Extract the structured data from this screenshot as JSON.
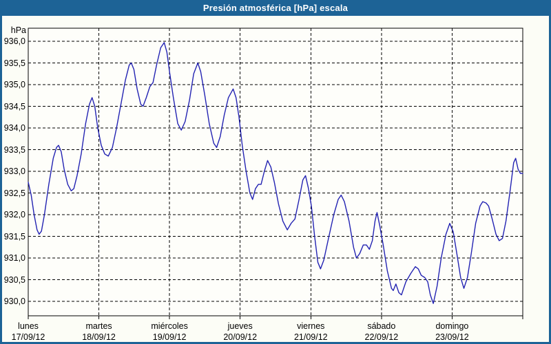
{
  "window": {
    "title": "Presión atmosférica [hPa] escala"
  },
  "colors": {
    "titlebar_bg": "#1d6396",
    "titlebar_text": "#ffffff",
    "frame_border": "#1d6396",
    "canvas_bg": "#fcfdf6",
    "plot_bg": "#fefefa",
    "grid": "#000000",
    "axis": "#000000",
    "line": "#2222b2",
    "label_text": "#000000"
  },
  "chart_data": {
    "type": "line",
    "title": "Presión atmosférica [hPa] escala",
    "xlabel": "",
    "ylabel": "hPa",
    "ylim": [
      930.0,
      936.0
    ],
    "y_tick_step": 0.5,
    "y_tick_labels": [
      "936,0",
      "935,5",
      "935,0",
      "934,5",
      "934,0",
      "933,5",
      "933,0",
      "932,5",
      "932,0",
      "931,5",
      "931,0",
      "930,5",
      "930,0"
    ],
    "y_tick_values": [
      936.0,
      935.5,
      935.0,
      934.5,
      934.0,
      933.5,
      933.0,
      932.5,
      932.0,
      931.5,
      931.0,
      930.5,
      930.0
    ],
    "x_unit": "hours since lunes 17/09/12 00:00",
    "xlim": [
      0,
      168
    ],
    "x_days": [
      {
        "name": "lunes",
        "date": "17/09/12"
      },
      {
        "name": "martes",
        "date": "18/09/12"
      },
      {
        "name": "miércoles",
        "date": "19/09/12"
      },
      {
        "name": "jueves",
        "date": "20/09/12"
      },
      {
        "name": "viernes",
        "date": "21/09/12"
      },
      {
        "name": "sábado",
        "date": "22/09/12"
      },
      {
        "name": "domingo",
        "date": "23/09/12"
      }
    ],
    "grid": true,
    "legend_position": "none",
    "series": [
      {
        "name": "Presión atmosférica",
        "points": [
          [
            0,
            932.75
          ],
          [
            1,
            932.45
          ],
          [
            2,
            932.0
          ],
          [
            3,
            931.65
          ],
          [
            3.7,
            931.55
          ],
          [
            4.5,
            931.62
          ],
          [
            5.5,
            932.0
          ],
          [
            7,
            932.7
          ],
          [
            8.5,
            933.3
          ],
          [
            9.6,
            933.55
          ],
          [
            10.3,
            933.6
          ],
          [
            11.2,
            933.45
          ],
          [
            12.2,
            933.05
          ],
          [
            13.4,
            932.7
          ],
          [
            14.6,
            932.55
          ],
          [
            15.5,
            932.6
          ],
          [
            16.6,
            932.9
          ],
          [
            18,
            933.4
          ],
          [
            19.5,
            934.1
          ],
          [
            20.8,
            934.55
          ],
          [
            21.7,
            934.7
          ],
          [
            22.6,
            934.5
          ],
          [
            23.6,
            934.0
          ],
          [
            24.8,
            933.6
          ],
          [
            26,
            933.4
          ],
          [
            27.2,
            933.35
          ],
          [
            28.6,
            933.55
          ],
          [
            30,
            934.0
          ],
          [
            31.5,
            934.55
          ],
          [
            33,
            935.1
          ],
          [
            34.3,
            935.45
          ],
          [
            35,
            935.5
          ],
          [
            35.9,
            935.35
          ],
          [
            37,
            934.9
          ],
          [
            38.2,
            934.55
          ],
          [
            39,
            934.5
          ],
          [
            40.1,
            934.7
          ],
          [
            41.3,
            934.95
          ],
          [
            42.4,
            935.05
          ],
          [
            43.6,
            935.45
          ],
          [
            45,
            935.85
          ],
          [
            46.2,
            935.97
          ],
          [
            47.1,
            935.75
          ],
          [
            48,
            935.3
          ],
          [
            49.3,
            934.7
          ],
          [
            50.8,
            934.1
          ],
          [
            52,
            933.95
          ],
          [
            53.3,
            934.15
          ],
          [
            54.8,
            934.65
          ],
          [
            56.2,
            935.25
          ],
          [
            57.6,
            935.5
          ],
          [
            58.6,
            935.3
          ],
          [
            60,
            934.75
          ],
          [
            61.5,
            934.1
          ],
          [
            63,
            933.65
          ],
          [
            64,
            933.55
          ],
          [
            65.2,
            933.8
          ],
          [
            66.6,
            934.3
          ],
          [
            68,
            934.7
          ],
          [
            69.6,
            934.9
          ],
          [
            70.6,
            934.7
          ],
          [
            71.6,
            934.25
          ],
          [
            72.7,
            933.6
          ],
          [
            74,
            933.0
          ],
          [
            75.3,
            932.5
          ],
          [
            76.2,
            932.35
          ],
          [
            77.2,
            932.6
          ],
          [
            78.2,
            932.7
          ],
          [
            79.1,
            932.7
          ],
          [
            80.2,
            933.0
          ],
          [
            81.3,
            933.25
          ],
          [
            82.4,
            933.1
          ],
          [
            83.6,
            932.75
          ],
          [
            85,
            932.25
          ],
          [
            86.5,
            931.85
          ],
          [
            88,
            931.65
          ],
          [
            89.3,
            931.8
          ],
          [
            90.6,
            931.9
          ],
          [
            92,
            932.35
          ],
          [
            93.3,
            932.8
          ],
          [
            94.2,
            932.9
          ],
          [
            95.2,
            932.6
          ],
          [
            96.2,
            932.2
          ],
          [
            97.3,
            931.5
          ],
          [
            98.4,
            930.9
          ],
          [
            99.3,
            930.75
          ],
          [
            100.4,
            930.95
          ],
          [
            102,
            931.45
          ],
          [
            103.8,
            932.0
          ],
          [
            105.3,
            932.35
          ],
          [
            106.3,
            932.45
          ],
          [
            107.4,
            932.3
          ],
          [
            109,
            931.85
          ],
          [
            110.5,
            931.25
          ],
          [
            111.5,
            931.0
          ],
          [
            112.6,
            931.1
          ],
          [
            113.8,
            931.3
          ],
          [
            114.9,
            931.3
          ],
          [
            115.9,
            931.2
          ],
          [
            116.9,
            931.4
          ],
          [
            117.8,
            931.85
          ],
          [
            118.5,
            932.05
          ],
          [
            119.4,
            931.75
          ],
          [
            120.6,
            931.3
          ],
          [
            122,
            930.7
          ],
          [
            123.4,
            930.3
          ],
          [
            124,
            930.25
          ],
          [
            124.9,
            930.4
          ],
          [
            125.9,
            930.2
          ],
          [
            126.8,
            930.15
          ],
          [
            128.3,
            930.45
          ],
          [
            130,
            930.65
          ],
          [
            131.5,
            930.8
          ],
          [
            132.5,
            930.75
          ],
          [
            133.5,
            930.6
          ],
          [
            134.7,
            930.55
          ],
          [
            135.7,
            930.45
          ],
          [
            136.6,
            930.15
          ],
          [
            137.6,
            929.95
          ],
          [
            138.9,
            930.35
          ],
          [
            140.3,
            931.0
          ],
          [
            141.9,
            931.55
          ],
          [
            143.2,
            931.8
          ],
          [
            144.4,
            931.6
          ],
          [
            145.6,
            931.1
          ],
          [
            146.9,
            930.55
          ],
          [
            148,
            930.3
          ],
          [
            149.2,
            930.55
          ],
          [
            150.5,
            931.1
          ],
          [
            152,
            931.8
          ],
          [
            153.5,
            932.2
          ],
          [
            154.4,
            932.3
          ],
          [
            155.5,
            932.27
          ],
          [
            156.4,
            932.2
          ],
          [
            157.6,
            931.9
          ],
          [
            158.9,
            931.55
          ],
          [
            160,
            931.4
          ],
          [
            161.1,
            931.45
          ],
          [
            162.3,
            931.85
          ],
          [
            163.6,
            932.5
          ],
          [
            164.9,
            933.2
          ],
          [
            165.6,
            933.3
          ],
          [
            166.4,
            933.05
          ],
          [
            167.2,
            932.95
          ],
          [
            168,
            932.95
          ]
        ]
      }
    ]
  }
}
